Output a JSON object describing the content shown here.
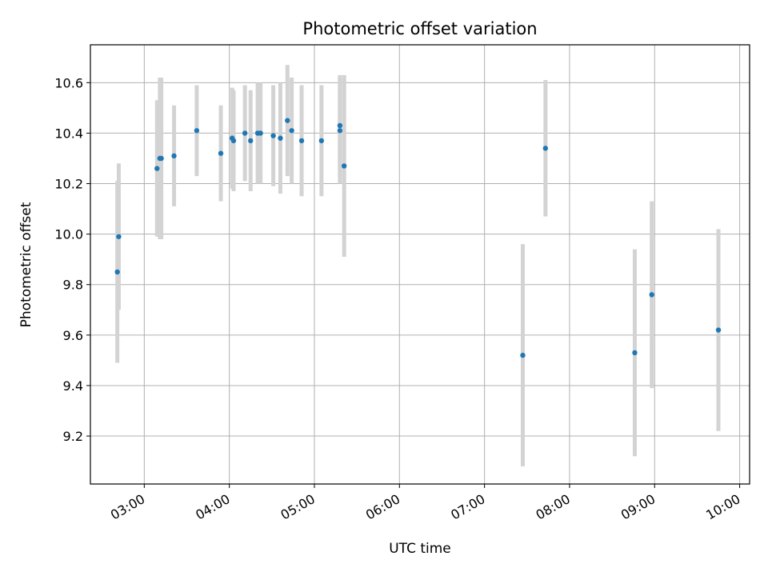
{
  "chart_data": {
    "type": "scatter",
    "title": "Photometric offset variation",
    "xlabel": "UTC time",
    "ylabel": "Photometric offset",
    "x_ticks": [
      "03:00",
      "04:00",
      "05:00",
      "06:00",
      "07:00",
      "08:00",
      "09:00",
      "10:00"
    ],
    "y_ticks": [
      "9.2",
      "9.4",
      "9.6",
      "9.8",
      "10.0",
      "10.2",
      "10.4",
      "10.6"
    ],
    "xlim": [
      "02:22",
      "10:07"
    ],
    "ylim": [
      9.01,
      10.75
    ],
    "grid": true,
    "errorbar_color": "#d3d3d3",
    "point_color": "#1f77b4",
    "series": [
      {
        "x": [
          "02:41",
          "02:42",
          "03:09",
          "03:11",
          "03:12",
          "03:21",
          "03:37",
          "03:54",
          "04:02",
          "04:03",
          "04:11",
          "04:15",
          "04:20",
          "04:22",
          "04:31",
          "04:36",
          "04:41",
          "04:44",
          "04:51",
          "05:05",
          "05:18",
          "05:18",
          "05:21",
          "07:27",
          "07:43",
          "08:46",
          "08:58",
          "09:45"
        ],
        "y": [
          9.85,
          9.99,
          10.26,
          10.3,
          10.3,
          10.31,
          10.41,
          10.32,
          10.38,
          10.37,
          10.4,
          10.37,
          10.4,
          10.4,
          10.39,
          10.38,
          10.45,
          10.41,
          10.37,
          10.37,
          10.41,
          10.43,
          10.27,
          9.52,
          10.34,
          9.53,
          9.76,
          9.62
        ],
        "yerr": [
          0.36,
          0.29,
          0.27,
          0.32,
          0.32,
          0.2,
          0.18,
          0.19,
          0.2,
          0.2,
          0.19,
          0.2,
          0.2,
          0.2,
          0.2,
          0.22,
          0.22,
          0.21,
          0.22,
          0.22,
          0.21,
          0.2,
          0.36,
          0.44,
          0.27,
          0.41,
          0.37,
          0.4
        ]
      }
    ]
  }
}
